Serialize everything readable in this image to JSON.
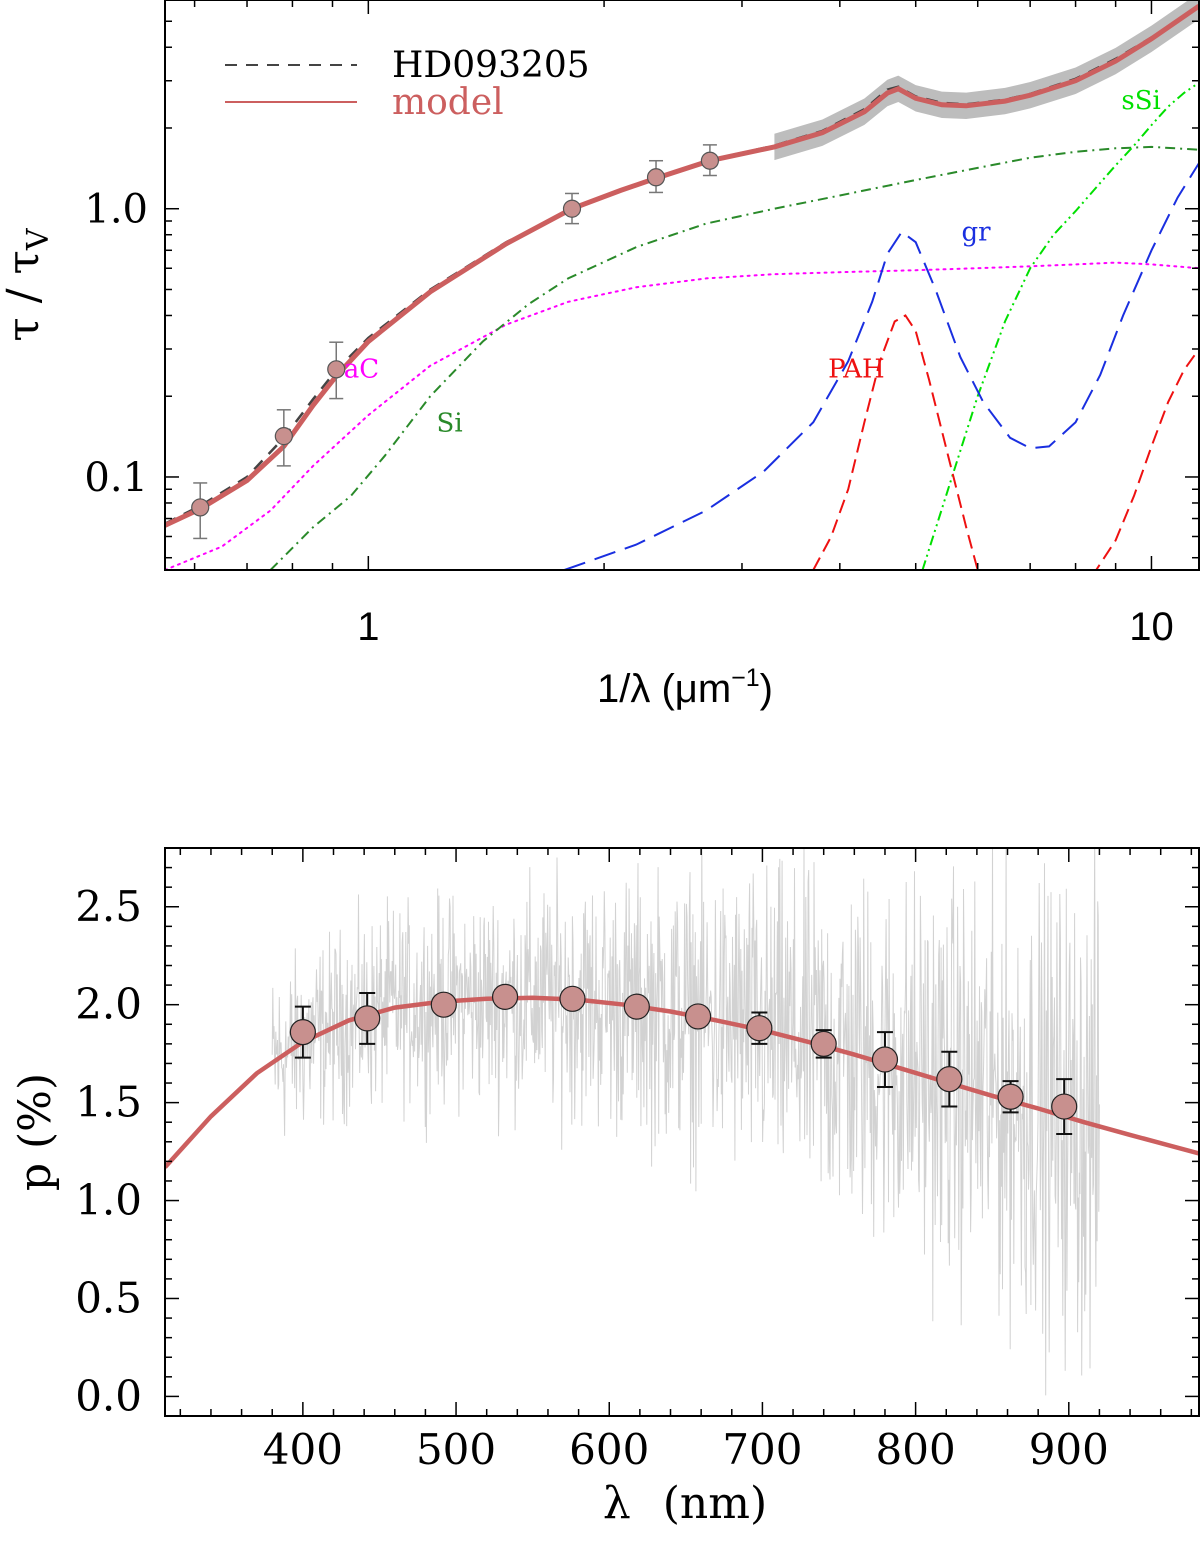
{
  "colors": {
    "model": "#cc5f5f",
    "observed": "#444444",
    "band": "#bdbdbd",
    "marker_fill": "#c8908e",
    "aC": "#ff00ff",
    "Si": "#2a8a2a",
    "sSi": "#00e000",
    "gr": "#1a2fe0",
    "PAH": "#ee1111",
    "noise": "#d2d2d2",
    "errbar_top": "#777777",
    "errbar_bottom": "#111111"
  },
  "chart_data": [
    {
      "type": "line",
      "scale": "log-log",
      "xlabel_main": "1/λ (μm",
      "xlabel_sup": "−1",
      "xlabel_close": ")",
      "ylabel_main": "τ / τ",
      "ylabel_sub": "V",
      "xlim": [
        0.55,
        11.5
      ],
      "ylim": [
        0.045,
        6.0
      ],
      "xticks": [
        {
          "value": 1,
          "label": "1"
        },
        {
          "value": 10,
          "label": "10"
        }
      ],
      "yticks": [
        {
          "value": 0.1,
          "label": "0.1"
        },
        {
          "value": 1.0,
          "label": "1.0"
        }
      ],
      "legend": {
        "position": "top-left",
        "entries": [
          {
            "label": "HD093205",
            "style": "dashed"
          },
          {
            "label": "model",
            "style": "solid"
          }
        ]
      },
      "component_labels": [
        {
          "name": "aC",
          "label": "aC",
          "x": 0.98,
          "y": 0.235
        },
        {
          "name": "Si",
          "label": "Si",
          "x": 1.27,
          "y": 0.148
        },
        {
          "name": "PAH",
          "label": "PAH",
          "x": 4.2,
          "y": 0.235
        },
        {
          "name": "gr",
          "label": "gr",
          "x": 5.97,
          "y": 0.76
        },
        {
          "name": "sSi",
          "label": "sSi",
          "x": 9.7,
          "y": 2.35
        }
      ],
      "points": {
        "x": [
          0.61,
          0.78,
          0.91,
          1.82,
          2.33,
          2.73
        ],
        "y": [
          0.077,
          0.142,
          0.252,
          1.0,
          1.31,
          1.51
        ],
        "err_low": [
          0.059,
          0.11,
          0.196,
          0.88,
          1.15,
          1.33
        ],
        "err_high": [
          0.095,
          0.178,
          0.318,
          1.14,
          1.51,
          1.73
        ]
      },
      "series": [
        {
          "name": "HD093205",
          "x": [
            0.55,
            0.61,
            0.7,
            0.78,
            0.85,
            0.91,
            1.0,
            1.2,
            1.5,
            1.82,
            2.1,
            2.33,
            2.73,
            3.3,
            3.8,
            4.3,
            4.6,
            4.75,
            5.0,
            5.4,
            5.8,
            6.5,
            7.0,
            8.0,
            9.0,
            10.0,
            11.5
          ],
          "y": [
            0.067,
            0.078,
            0.1,
            0.14,
            0.195,
            0.25,
            0.33,
            0.5,
            0.75,
            0.99,
            1.17,
            1.3,
            1.52,
            1.72,
            1.95,
            2.35,
            2.78,
            2.85,
            2.62,
            2.48,
            2.45,
            2.55,
            2.68,
            3.05,
            3.62,
            4.35,
            5.65
          ]
        },
        {
          "name": "model",
          "x": [
            0.55,
            0.61,
            0.7,
            0.78,
            0.85,
            0.91,
            1.0,
            1.2,
            1.5,
            1.82,
            2.1,
            2.33,
            2.73,
            3.3,
            3.8,
            4.3,
            4.6,
            4.75,
            5.0,
            5.4,
            5.8,
            6.5,
            7.0,
            8.0,
            9.0,
            10.0,
            11.5
          ],
          "y": [
            0.066,
            0.076,
            0.097,
            0.13,
            0.185,
            0.238,
            0.32,
            0.49,
            0.74,
            1.0,
            1.17,
            1.3,
            1.51,
            1.7,
            1.92,
            2.3,
            2.7,
            2.8,
            2.58,
            2.44,
            2.42,
            2.52,
            2.65,
            3.0,
            3.55,
            4.3,
            5.7
          ]
        },
        {
          "name": "aC",
          "x": [
            0.55,
            0.65,
            0.75,
            0.85,
            1.0,
            1.2,
            1.5,
            1.8,
            2.2,
            2.7,
            3.3,
            4.0,
            5.0,
            6.0,
            7.0,
            8.0,
            9.0,
            10.0,
            11.5
          ],
          "y": [
            0.045,
            0.055,
            0.075,
            0.11,
            0.17,
            0.26,
            0.37,
            0.45,
            0.51,
            0.55,
            0.57,
            0.58,
            0.59,
            0.6,
            0.61,
            0.62,
            0.63,
            0.62,
            0.6
          ]
        },
        {
          "name": "Si",
          "x": [
            0.75,
            0.85,
            0.95,
            1.05,
            1.2,
            1.4,
            1.6,
            1.8,
            2.2,
            2.7,
            3.3,
            4.0,
            5.0,
            6.0,
            7.0,
            8.0,
            9.0,
            10.0,
            11.5
          ],
          "y": [
            0.045,
            0.065,
            0.085,
            0.12,
            0.2,
            0.32,
            0.44,
            0.55,
            0.72,
            0.88,
            1.0,
            1.12,
            1.28,
            1.42,
            1.55,
            1.63,
            1.68,
            1.7,
            1.66
          ]
        },
        {
          "name": "sSi",
          "x": [
            5.1,
            5.5,
            6.0,
            6.5,
            7.0,
            7.5,
            8.0,
            8.5,
            9.0,
            9.5,
            10.0,
            10.5,
            11.0,
            11.5
          ],
          "y": [
            0.045,
            0.09,
            0.2,
            0.38,
            0.6,
            0.8,
            0.98,
            1.2,
            1.45,
            1.72,
            2.05,
            2.4,
            2.7,
            2.95
          ]
        },
        {
          "name": "gr",
          "x": [
            1.78,
            2.2,
            2.7,
            3.2,
            3.7,
            4.1,
            4.4,
            4.6,
            4.8,
            5.0,
            5.3,
            5.7,
            6.1,
            6.6,
            7.0,
            7.4,
            8.0,
            8.6,
            9.2,
            10.0,
            10.8,
            11.5
          ],
          "y": [
            0.045,
            0.056,
            0.075,
            0.105,
            0.16,
            0.27,
            0.45,
            0.68,
            0.82,
            0.75,
            0.5,
            0.28,
            0.19,
            0.14,
            0.128,
            0.13,
            0.16,
            0.24,
            0.4,
            0.7,
            1.1,
            1.48
          ]
        },
        {
          "name": "PAH",
          "x": [
            3.7,
            3.9,
            4.1,
            4.3,
            4.5,
            4.7,
            4.85,
            5.0,
            5.2,
            5.5,
            5.8,
            6.0,
            8.5,
            9.0,
            9.5,
            10.0,
            10.5,
            11.0,
            11.5
          ],
          "y": [
            0.045,
            0.06,
            0.09,
            0.16,
            0.27,
            0.38,
            0.4,
            0.35,
            0.23,
            0.12,
            0.065,
            0.045,
            0.045,
            0.058,
            0.085,
            0.13,
            0.19,
            0.25,
            0.3
          ]
        }
      ]
    },
    {
      "type": "line",
      "scale": "linear",
      "xlabel_main": "λ",
      "xlabel_unit": "(nm)",
      "ylabel": "p (%)",
      "xlim": [
        310,
        985
      ],
      "ylim": [
        -0.1,
        2.8
      ],
      "xticks": [
        400,
        500,
        600,
        700,
        800,
        900
      ],
      "yticks": [
        "0.0",
        "0.5",
        "1.0",
        "1.5",
        "2.0",
        "2.5"
      ],
      "noise_spectrum": {
        "name": "observed spectrum",
        "x_start": 380,
        "x_end": 920
      },
      "points": {
        "x": [
          400,
          442,
          492,
          532,
          576,
          618,
          658,
          698,
          740,
          780,
          822,
          862,
          897
        ],
        "y": [
          1.86,
          1.93,
          2.0,
          2.04,
          2.03,
          1.99,
          1.94,
          1.88,
          1.8,
          1.72,
          1.62,
          1.53,
          1.48
        ],
        "err": [
          0.13,
          0.13,
          0.03,
          0.03,
          0.04,
          0.04,
          0.04,
          0.08,
          0.07,
          0.14,
          0.14,
          0.08,
          0.14
        ]
      },
      "series": [
        {
          "name": "model",
          "x": [
            310,
            340,
            370,
            400,
            430,
            460,
            490,
            520,
            550,
            580,
            610,
            640,
            670,
            700,
            730,
            760,
            790,
            820,
            850,
            880,
            910,
            940,
            985
          ],
          "y": [
            1.17,
            1.43,
            1.65,
            1.81,
            1.92,
            1.985,
            2.015,
            2.03,
            2.035,
            2.025,
            2.0,
            1.965,
            1.92,
            1.87,
            1.81,
            1.745,
            1.675,
            1.605,
            1.535,
            1.47,
            1.4,
            1.335,
            1.24
          ]
        }
      ]
    }
  ]
}
